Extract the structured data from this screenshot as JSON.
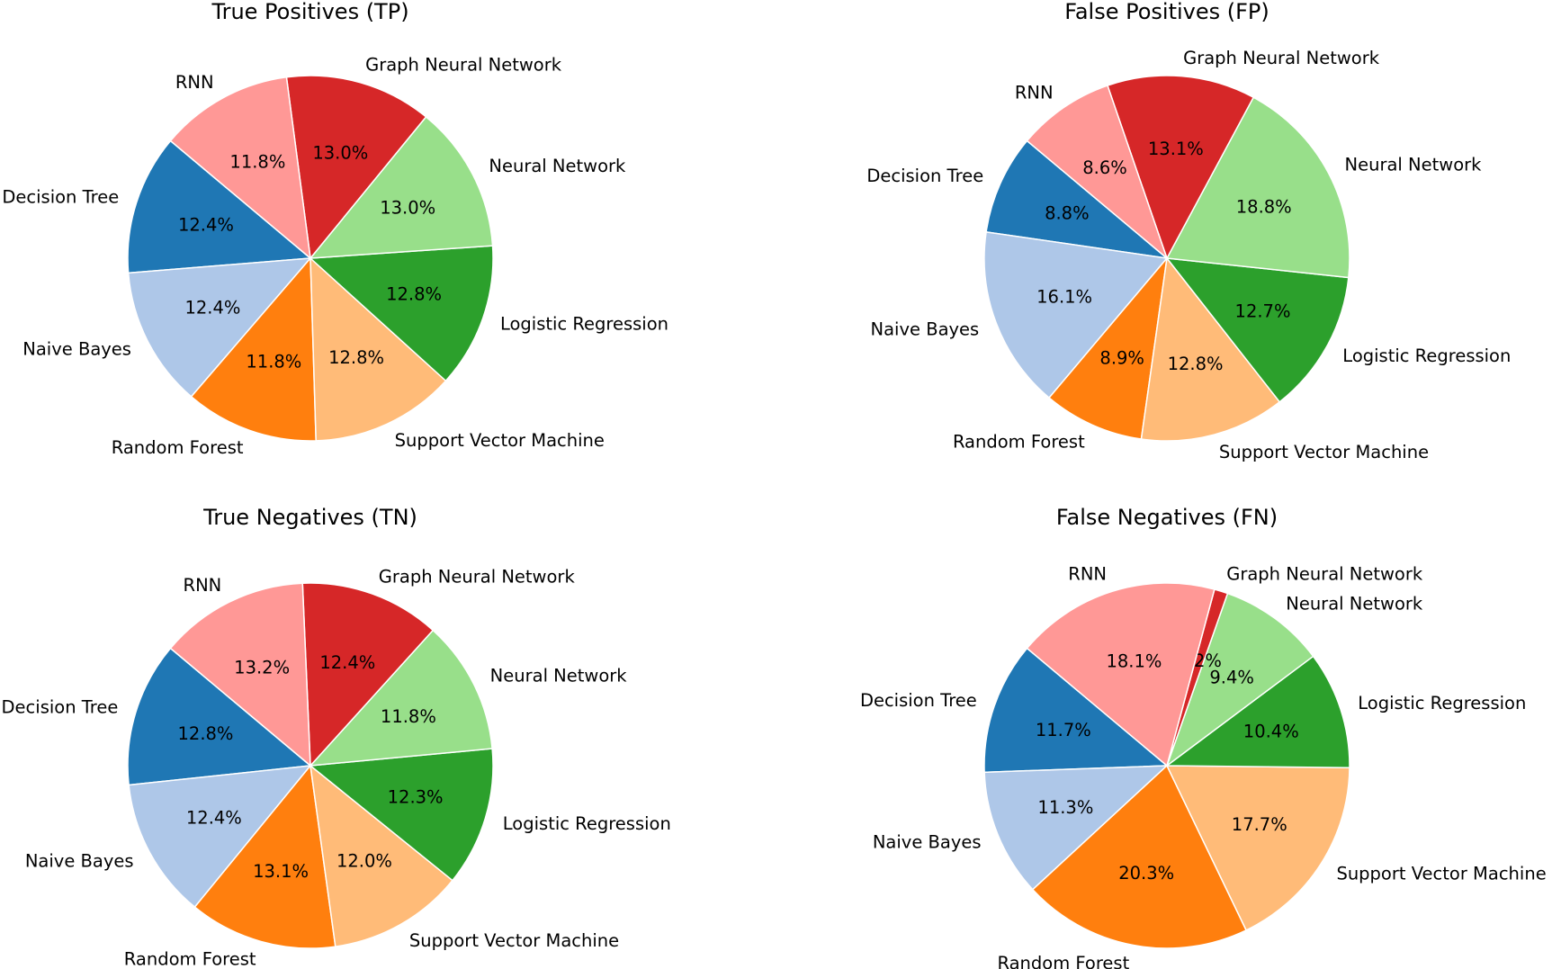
{
  "chart_data": [
    {
      "type": "pie",
      "title": "True Positives (TP)",
      "start_angle_deg": 140,
      "direction": "counterclockwise",
      "slices": [
        {
          "label": "Decision Tree",
          "value": 12.4,
          "pct_text": "12.4%",
          "color": "#1f77b4"
        },
        {
          "label": "Naive Bayes",
          "value": 12.4,
          "pct_text": "12.4%",
          "color": "#aec7e8"
        },
        {
          "label": "Random Forest",
          "value": 11.8,
          "pct_text": "11.8%",
          "color": "#ff7f0e"
        },
        {
          "label": "Support Vector Machine",
          "value": 12.8,
          "pct_text": "12.8%",
          "color": "#ffbb78"
        },
        {
          "label": "Logistic Regression",
          "value": 12.8,
          "pct_text": "12.8%",
          "color": "#2ca02c"
        },
        {
          "label": "Neural Network",
          "value": 13.0,
          "pct_text": "13.0%",
          "color": "#98df8a"
        },
        {
          "label": "Graph Neural Network",
          "value": 13.0,
          "pct_text": "13.0%",
          "color": "#d62728"
        },
        {
          "label": "RNN",
          "value": 11.8,
          "pct_text": "11.8%",
          "color": "#ff9896"
        }
      ]
    },
    {
      "type": "pie",
      "title": "False Positives (FP)",
      "start_angle_deg": 140,
      "direction": "counterclockwise",
      "slices": [
        {
          "label": "Decision Tree",
          "value": 8.8,
          "pct_text": "8.8%",
          "color": "#1f77b4"
        },
        {
          "label": "Naive Bayes",
          "value": 16.1,
          "pct_text": "16.1%",
          "color": "#aec7e8"
        },
        {
          "label": "Random Forest",
          "value": 8.9,
          "pct_text": "8.9%",
          "color": "#ff7f0e"
        },
        {
          "label": "Support Vector Machine",
          "value": 12.8,
          "pct_text": "12.8%",
          "color": "#ffbb78"
        },
        {
          "label": "Logistic Regression",
          "value": 12.7,
          "pct_text": "12.7%",
          "color": "#2ca02c"
        },
        {
          "label": "Neural Network",
          "value": 18.8,
          "pct_text": "18.8%",
          "color": "#98df8a"
        },
        {
          "label": "Graph Neural Network",
          "value": 13.1,
          "pct_text": "13.1%",
          "color": "#d62728"
        },
        {
          "label": "RNN",
          "value": 8.6,
          "pct_text": "8.6%",
          "color": "#ff9896"
        }
      ]
    },
    {
      "type": "pie",
      "title": "True Negatives (TN)",
      "start_angle_deg": 140,
      "direction": "counterclockwise",
      "slices": [
        {
          "label": "Decision Tree",
          "value": 12.8,
          "pct_text": "12.8%",
          "color": "#1f77b4"
        },
        {
          "label": "Naive Bayes",
          "value": 12.4,
          "pct_text": "12.4%",
          "color": "#aec7e8"
        },
        {
          "label": "Random Forest",
          "value": 13.1,
          "pct_text": "13.1%",
          "color": "#ff7f0e"
        },
        {
          "label": "Support Vector Machine",
          "value": 12.0,
          "pct_text": "12.0%",
          "color": "#ffbb78"
        },
        {
          "label": "Logistic Regression",
          "value": 12.3,
          "pct_text": "12.3%",
          "color": "#2ca02c"
        },
        {
          "label": "Neural Network",
          "value": 11.8,
          "pct_text": "11.8%",
          "color": "#98df8a"
        },
        {
          "label": "Graph Neural Network",
          "value": 12.4,
          "pct_text": "12.4%",
          "color": "#d62728"
        },
        {
          "label": "RNN",
          "value": 13.2,
          "pct_text": "13.2%",
          "color": "#ff9896"
        }
      ]
    },
    {
      "type": "pie",
      "title": "False Negatives (FN)",
      "start_angle_deg": 140,
      "direction": "counterclockwise",
      "slices": [
        {
          "label": "Decision Tree",
          "value": 11.7,
          "pct_text": "11.7%",
          "color": "#1f77b4"
        },
        {
          "label": "Naive Bayes",
          "value": 11.3,
          "pct_text": "11.3%",
          "color": "#aec7e8"
        },
        {
          "label": "Random Forest",
          "value": 20.3,
          "pct_text": "20.3%",
          "color": "#ff7f0e"
        },
        {
          "label": "Support Vector Machine",
          "value": 17.7,
          "pct_text": "17.7%",
          "color": "#ffbb78"
        },
        {
          "label": "Logistic Regression",
          "value": 10.4,
          "pct_text": "10.4%",
          "color": "#2ca02c"
        },
        {
          "label": "Neural Network",
          "value": 9.4,
          "pct_text": "9.4%",
          "color": "#98df8a"
        },
        {
          "label": "Graph Neural Network",
          "value": 1.2,
          "pct_text": "1.2%",
          "color": "#d62728"
        },
        {
          "label": "RNN",
          "value": 18.1,
          "pct_text": "18.1%",
          "color": "#ff9896"
        }
      ]
    }
  ]
}
